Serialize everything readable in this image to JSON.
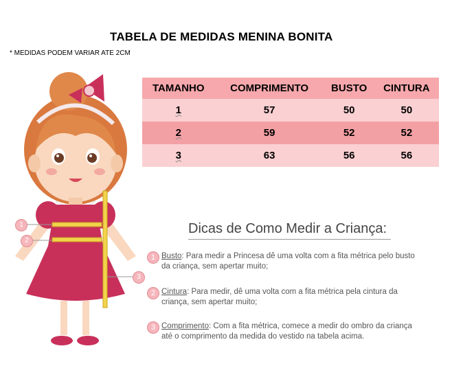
{
  "header": {
    "title": "TABELA DE MEDIDAS  MENINA BONITA",
    "note": "* MEDIDAS PODEM VARIAR ATE 2CM"
  },
  "table": {
    "headers": [
      "TAMANHO",
      "COMPRIMENTO",
      "BUSTO",
      "CINTURA"
    ],
    "rows": [
      [
        "1",
        "57",
        "50",
        "50"
      ],
      [
        "2",
        "59",
        "52",
        "52"
      ],
      [
        "3",
        "63",
        "56",
        "56"
      ]
    ]
  },
  "tips": {
    "title": "Dicas de Como Medir a Criança:",
    "items": [
      {
        "num": "1",
        "label": "Busto",
        "text": ": Para medir a Princesa dê uma volta com a fita métrica pelo busto",
        "cont": "da criança, sem apertar muito;"
      },
      {
        "num": "2",
        "label": "Cintura",
        "text": ": Para medir, dê uma volta com a fita métrica pela cintura da",
        "cont": "criança, sem apertar muito;"
      },
      {
        "num": "3",
        "label": "Comprimento",
        "text": ": Com a fita métrica, comece a medir do ombro da criança",
        "cont": "até o comprimento da medida do vestido na tabela acima."
      }
    ]
  },
  "illustration": {
    "markers": [
      "1",
      "2",
      "3"
    ],
    "colors": {
      "dress": "#c8305a",
      "hair": "#e0884a",
      "tape": "#f2d34a",
      "marker": "#f5b6bc"
    }
  }
}
